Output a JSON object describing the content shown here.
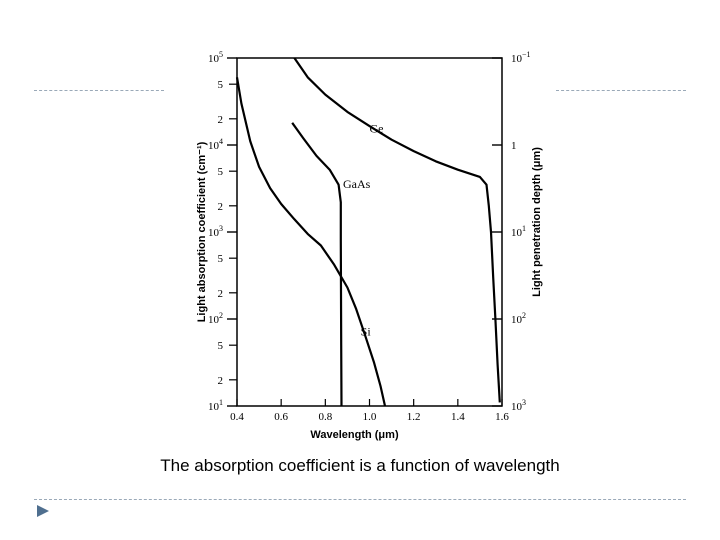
{
  "caption": "The absorption coefficient is a function of wavelength",
  "colors": {
    "divider": "#9aa9b8",
    "bullet": "#4f6f8f",
    "curve": "#000000"
  },
  "chart_data": {
    "type": "line",
    "title": "",
    "xlabel": "Wavelength (μm)",
    "ylabel": "Light absorption coefficient (cm⁻¹)",
    "y2label": "Light penetration depth (μm)",
    "xlim": [
      0.4,
      1.6
    ],
    "ylim": [
      10,
      100000
    ],
    "yscale": "log",
    "x_ticks": [
      "0.4",
      "0.6",
      "0.8",
      "1.0",
      "1.2",
      "1.4",
      "1.6"
    ],
    "y_major_ticks": [
      {
        "value": 100000,
        "base": "10",
        "exp": "5"
      },
      {
        "value": 10000,
        "base": "10",
        "exp": "4"
      },
      {
        "value": 1000,
        "base": "10",
        "exp": "3"
      },
      {
        "value": 100,
        "base": "10",
        "exp": "2"
      },
      {
        "value": 10,
        "base": "10",
        "exp": "1"
      }
    ],
    "y_minor_ticks": [
      {
        "value": 50000,
        "label": "5"
      },
      {
        "value": 20000,
        "label": "2"
      },
      {
        "value": 5000,
        "label": "5"
      },
      {
        "value": 2000,
        "label": "2"
      },
      {
        "value": 500,
        "label": "5"
      },
      {
        "value": 200,
        "label": "2"
      },
      {
        "value": 50,
        "label": "5"
      },
      {
        "value": 20,
        "label": "2"
      }
    ],
    "y2_ticks": [
      {
        "value": 100000,
        "base": "10",
        "exp": "−1"
      },
      {
        "value": 10000,
        "base": "1",
        "exp": ""
      },
      {
        "value": 1000,
        "base": "10",
        "exp": "1"
      },
      {
        "value": 100,
        "base": "10",
        "exp": "2"
      },
      {
        "value": 10,
        "base": "10",
        "exp": "3"
      }
    ],
    "grid": false,
    "series": [
      {
        "name": "Ge",
        "label_at": {
          "x": 1.0,
          "y": 14000
        },
        "points": [
          [
            0.66,
            100000
          ],
          [
            0.72,
            60000
          ],
          [
            0.8,
            38000
          ],
          [
            0.9,
            24000
          ],
          [
            1.0,
            16500
          ],
          [
            1.1,
            11500
          ],
          [
            1.2,
            8500
          ],
          [
            1.3,
            6500
          ],
          [
            1.4,
            5200
          ],
          [
            1.5,
            4300
          ],
          [
            1.53,
            3500
          ],
          [
            1.54,
            2000
          ],
          [
            1.55,
            1000
          ],
          [
            1.56,
            300
          ],
          [
            1.57,
            100
          ],
          [
            1.58,
            30
          ],
          [
            1.59,
            11
          ]
        ]
      },
      {
        "name": "GaAs",
        "label_at": {
          "x": 0.88,
          "y": 3200
        },
        "points": [
          [
            0.65,
            18000
          ],
          [
            0.7,
            12000
          ],
          [
            0.76,
            7500
          ],
          [
            0.82,
            5200
          ],
          [
            0.86,
            3500
          ],
          [
            0.87,
            2200
          ],
          [
            0.87,
            800
          ],
          [
            0.871,
            200
          ],
          [
            0.872,
            50
          ],
          [
            0.873,
            10
          ]
        ]
      },
      {
        "name": "Si",
        "label_at": {
          "x": 0.96,
          "y": 65
        },
        "points": [
          [
            0.4,
            60000
          ],
          [
            0.42,
            30000
          ],
          [
            0.46,
            11000
          ],
          [
            0.5,
            5600
          ],
          [
            0.55,
            3200
          ],
          [
            0.6,
            2100
          ],
          [
            0.66,
            1400
          ],
          [
            0.72,
            950
          ],
          [
            0.78,
            700
          ],
          [
            0.84,
            420
          ],
          [
            0.9,
            230
          ],
          [
            0.94,
            130
          ],
          [
            0.98,
            65
          ],
          [
            1.02,
            32
          ],
          [
            1.05,
            17
          ],
          [
            1.07,
            10
          ]
        ]
      }
    ]
  }
}
